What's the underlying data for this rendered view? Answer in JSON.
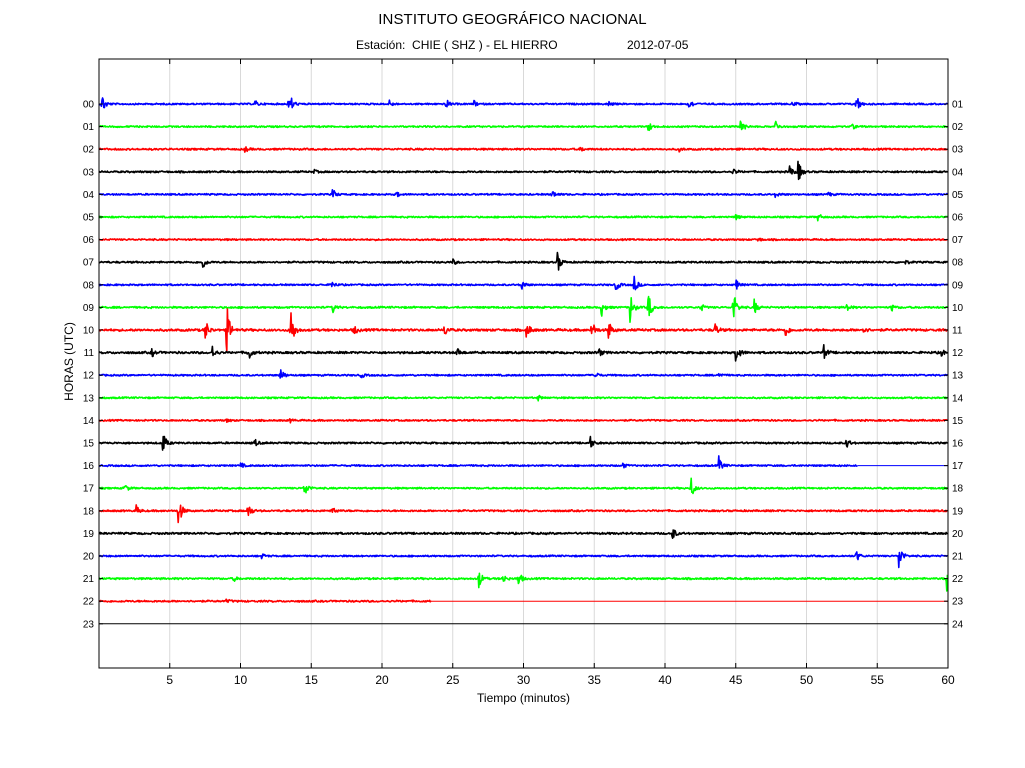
{
  "header": {
    "title": "INSTITUTO GEOGRÁFICO NACIONAL",
    "station_label": "Estación:",
    "station": "CHIE ( SHZ ) - EL HIERRO",
    "date": "2012-07-05"
  },
  "chart_data": {
    "type": "line",
    "title": "INSTITUTO GEOGRÁFICO NACIONAL",
    "subtitle": "Estación:  CHIE ( SHZ ) - EL HIERRO     2012-07-05",
    "xlabel": "Tiempo (minutos)",
    "ylabel": "HORAS (UTC)",
    "xlim": [
      0,
      60
    ],
    "x_ticks": [
      5,
      10,
      15,
      20,
      25,
      30,
      35,
      40,
      45,
      50,
      55,
      60
    ],
    "grid": "vertical",
    "trace_colors": [
      "#0000ff",
      "#00ff00",
      "#ff0000",
      "#000000"
    ],
    "y_ticks_left": [
      "00",
      "01",
      "02",
      "03",
      "04",
      "05",
      "06",
      "07",
      "08",
      "09",
      "10",
      "11",
      "12",
      "13",
      "14",
      "15",
      "16",
      "17",
      "18",
      "19",
      "20",
      "21",
      "22",
      "23"
    ],
    "y_ticks_right": [
      "01",
      "02",
      "03",
      "04",
      "05",
      "06",
      "07",
      "08",
      "09",
      "10",
      "11",
      "12",
      "13",
      "14",
      "15",
      "16",
      "17",
      "18",
      "19",
      "20",
      "21",
      "22",
      "23",
      "24"
    ],
    "rows": [
      {
        "hour": "00",
        "color": "#0000ff",
        "noise": 0.9,
        "data_end": 60,
        "events": [
          {
            "t": 0.2,
            "amp": 12
          },
          {
            "t": 13.4,
            "amp": 18
          },
          {
            "t": 11.0,
            "amp": 4
          },
          {
            "t": 20.5,
            "amp": 4
          },
          {
            "t": 24.5,
            "amp": 6
          },
          {
            "t": 26.5,
            "amp": 3
          },
          {
            "t": 36.0,
            "amp": 3
          },
          {
            "t": 41.7,
            "amp": 7
          },
          {
            "t": 49.0,
            "amp": 3
          },
          {
            "t": 53.5,
            "amp": 12
          }
        ]
      },
      {
        "hour": "01",
        "color": "#00ff00",
        "noise": 0.9,
        "data_end": 60,
        "events": [
          {
            "t": 38.8,
            "amp": 6
          },
          {
            "t": 45.3,
            "amp": 12
          },
          {
            "t": 47.8,
            "amp": 6
          },
          {
            "t": 53.2,
            "amp": 3
          }
        ]
      },
      {
        "hour": "02",
        "color": "#ff0000",
        "noise": 1.0,
        "data_end": 60,
        "events": [
          {
            "t": 10.3,
            "amp": 3
          },
          {
            "t": 34.0,
            "amp": 3
          },
          {
            "t": 41.0,
            "amp": 2
          }
        ]
      },
      {
        "hour": "03",
        "color": "#000000",
        "noise": 1.0,
        "data_end": 60,
        "events": [
          {
            "t": 15.2,
            "amp": 2
          },
          {
            "t": 44.8,
            "amp": 4
          },
          {
            "t": 48.8,
            "amp": 7
          },
          {
            "t": 49.4,
            "amp": 12
          }
        ]
      },
      {
        "hour": "04",
        "color": "#0000ff",
        "noise": 0.9,
        "data_end": 60,
        "events": [
          {
            "t": 16.5,
            "amp": 6
          },
          {
            "t": 21.0,
            "amp": 3
          },
          {
            "t": 32.0,
            "amp": 5
          },
          {
            "t": 47.8,
            "amp": 4
          },
          {
            "t": 51.5,
            "amp": 3
          }
        ]
      },
      {
        "hour": "05",
        "color": "#00ff00",
        "noise": 0.9,
        "data_end": 60,
        "events": [
          {
            "t": 45.0,
            "amp": 3
          },
          {
            "t": 50.8,
            "amp": 4
          }
        ]
      },
      {
        "hour": "06",
        "color": "#ff0000",
        "noise": 0.9,
        "data_end": 60,
        "events": [
          {
            "t": 46.5,
            "amp": 3
          }
        ]
      },
      {
        "hour": "07",
        "color": "#000000",
        "noise": 1.0,
        "data_end": 60,
        "events": [
          {
            "t": 7.3,
            "amp": 8
          },
          {
            "t": 25.0,
            "amp": 3
          },
          {
            "t": 32.4,
            "amp": 12
          },
          {
            "t": 57.0,
            "amp": 2
          }
        ]
      },
      {
        "hour": "08",
        "color": "#0000ff",
        "noise": 0.9,
        "data_end": 60,
        "events": [
          {
            "t": 16.4,
            "amp": 5
          },
          {
            "t": 29.8,
            "amp": 8
          },
          {
            "t": 36.5,
            "amp": 8
          },
          {
            "t": 37.8,
            "amp": 10
          },
          {
            "t": 45.0,
            "amp": 6
          }
        ]
      },
      {
        "hour": "09",
        "color": "#00ff00",
        "noise": 1.0,
        "data_end": 60,
        "events": [
          {
            "t": 16.5,
            "amp": 6
          },
          {
            "t": 35.5,
            "amp": 10
          },
          {
            "t": 37.5,
            "amp": 20
          },
          {
            "t": 38.8,
            "amp": 18
          },
          {
            "t": 42.5,
            "amp": 5
          },
          {
            "t": 44.8,
            "amp": 20
          },
          {
            "t": 46.3,
            "amp": 8
          },
          {
            "t": 52.8,
            "amp": 6
          },
          {
            "t": 56.0,
            "amp": 4
          }
        ]
      },
      {
        "hour": "10",
        "color": "#ff0000",
        "noise": 1.3,
        "data_end": 60,
        "events": [
          {
            "t": 7.5,
            "amp": 12
          },
          {
            "t": 9.0,
            "amp": 30
          },
          {
            "t": 13.5,
            "amp": 30
          },
          {
            "t": 18.0,
            "amp": 6
          },
          {
            "t": 24.4,
            "amp": 7
          },
          {
            "t": 30.2,
            "amp": 10
          },
          {
            "t": 34.8,
            "amp": 12
          },
          {
            "t": 36.0,
            "amp": 10
          },
          {
            "t": 43.5,
            "amp": 8
          },
          {
            "t": 48.5,
            "amp": 8
          },
          {
            "t": 54.0,
            "amp": 4
          }
        ]
      },
      {
        "hour": "11",
        "color": "#000000",
        "noise": 1.2,
        "data_end": 60,
        "events": [
          {
            "t": 3.7,
            "amp": 5
          },
          {
            "t": 8.0,
            "amp": 7
          },
          {
            "t": 10.5,
            "amp": 12
          },
          {
            "t": 25.3,
            "amp": 5
          },
          {
            "t": 35.3,
            "amp": 5
          },
          {
            "t": 45.0,
            "amp": 14
          },
          {
            "t": 51.2,
            "amp": 8
          },
          {
            "t": 59.5,
            "amp": 4
          }
        ]
      },
      {
        "hour": "12",
        "color": "#0000ff",
        "noise": 0.9,
        "data_end": 60,
        "events": [
          {
            "t": 12.8,
            "amp": 9
          },
          {
            "t": 18.5,
            "amp": 3
          },
          {
            "t": 35.0,
            "amp": 5
          },
          {
            "t": 43.8,
            "amp": 3
          }
        ]
      },
      {
        "hour": "13",
        "color": "#00ff00",
        "noise": 0.9,
        "data_end": 60,
        "events": [
          {
            "t": 31.0,
            "amp": 3
          }
        ]
      },
      {
        "hour": "14",
        "color": "#ff0000",
        "noise": 0.9,
        "data_end": 60,
        "events": [
          {
            "t": 9.0,
            "amp": 2
          },
          {
            "t": 13.5,
            "amp": 2
          }
        ]
      },
      {
        "hour": "15",
        "color": "#000000",
        "noise": 1.0,
        "data_end": 60,
        "events": [
          {
            "t": 4.5,
            "amp": 12
          },
          {
            "t": 11.0,
            "amp": 4
          },
          {
            "t": 34.7,
            "amp": 7
          },
          {
            "t": 52.8,
            "amp": 6
          }
        ]
      },
      {
        "hour": "16",
        "color": "#0000ff",
        "noise": 0.9,
        "data_end": 53.6,
        "events": [
          {
            "t": 10.0,
            "amp": 3
          },
          {
            "t": 37.0,
            "amp": 3
          },
          {
            "t": 43.8,
            "amp": 9
          }
        ]
      },
      {
        "hour": "17",
        "color": "#00ff00",
        "noise": 0.9,
        "data_end": 60,
        "events": [
          {
            "t": 1.8,
            "amp": 5
          },
          {
            "t": 14.5,
            "amp": 12
          },
          {
            "t": 41.8,
            "amp": 14
          }
        ]
      },
      {
        "hour": "18",
        "color": "#ff0000",
        "noise": 1.0,
        "data_end": 60,
        "events": [
          {
            "t": 2.6,
            "amp": 6
          },
          {
            "t": 5.6,
            "amp": 18
          },
          {
            "t": 10.5,
            "amp": 10
          },
          {
            "t": 16.5,
            "amp": 5
          }
        ]
      },
      {
        "hour": "19",
        "color": "#000000",
        "noise": 1.1,
        "data_end": 60,
        "events": [
          {
            "t": 40.5,
            "amp": 8
          }
        ]
      },
      {
        "hour": "20",
        "color": "#0000ff",
        "noise": 0.9,
        "data_end": 60,
        "events": [
          {
            "t": 11.5,
            "amp": 3
          },
          {
            "t": 53.5,
            "amp": 7
          },
          {
            "t": 56.5,
            "amp": 18
          }
        ]
      },
      {
        "hour": "21",
        "color": "#00ff00",
        "noise": 1.0,
        "data_end": 60,
        "events": [
          {
            "t": 9.5,
            "amp": 3
          },
          {
            "t": 26.8,
            "amp": 12
          },
          {
            "t": 28.5,
            "amp": 6
          },
          {
            "t": 29.6,
            "amp": 10
          },
          {
            "t": 59.9,
            "amp": 18
          }
        ]
      },
      {
        "hour": "22",
        "color": "#ff0000",
        "noise": 1.0,
        "data_end": 23.5,
        "events": [
          {
            "t": 9.0,
            "amp": 2
          }
        ]
      },
      {
        "hour": "23",
        "color": "#000000",
        "noise": 0,
        "data_end": 0,
        "events": []
      }
    ]
  }
}
